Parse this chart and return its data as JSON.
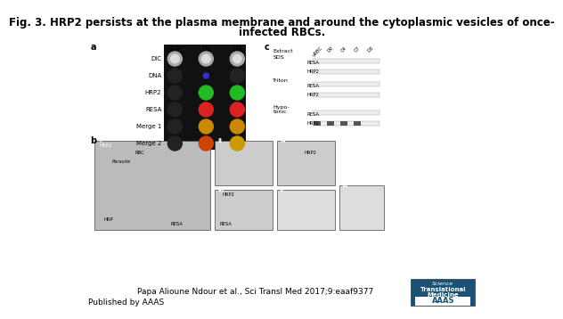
{
  "title_line1": "Fig. 3. HRP2 persists at the plasma membrane and around the cytoplasmic vesicles of once-",
  "title_line2": "infected RBCs.",
  "title_fontsize": 8.5,
  "title_bold": true,
  "footer_citation": "Papa Alioune Ndour et al., Sci Transl Med 2017;9:eaaf9377",
  "footer_published": "Published by AAAS",
  "footer_fontsize": 6.5,
  "bg_color": "#ffffff",
  "panel_a_label": "a",
  "panel_b_label": "b",
  "panel_c_label": "c",
  "col_labels": [
    "uRBC",
    "D0",
    "D3"
  ],
  "row_labels": [
    "DIC",
    "DNA",
    "HRP2",
    "RESA",
    "Merge 1",
    "Merge 2"
  ],
  "extract_label": "Extract",
  "extract_cols": [
    "uRBC",
    "D0",
    "C4",
    "C7",
    "D3.1"
  ],
  "sds_label": "SDS",
  "triton_label": "Triton",
  "hypotonic_label": "Hypo-\ntonic",
  "resa_label": "RESA",
  "hrp2_label": "HRP2",
  "logo_bg": "#1a5276",
  "logo_text1": "Science",
  "logo_text2": "Translational",
  "logo_text3": "Medicine",
  "logo_text4": "AAAS",
  "logo_fontsize": 5
}
